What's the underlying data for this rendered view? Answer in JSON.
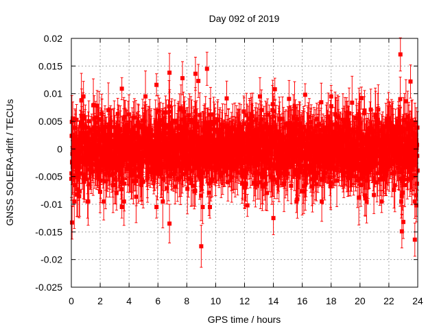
{
  "chart_data": {
    "type": "scatter",
    "title": "Day 092 of 2019",
    "xlabel": "GPS time / hours",
    "ylabel": "GNSS SOLERA-drift / TECUs",
    "xlim": [
      0,
      24
    ],
    "ylim": [
      -0.025,
      0.02
    ],
    "x_ticks": [
      0,
      2,
      4,
      6,
      8,
      10,
      12,
      14,
      16,
      18,
      20,
      22,
      24
    ],
    "x_tick_labels": [
      "0",
      "2",
      "4",
      "6",
      "8",
      "10",
      "12",
      "14",
      "16",
      "18",
      "20",
      "22",
      "24"
    ],
    "y_ticks": [
      -0.025,
      -0.02,
      -0.015,
      -0.01,
      -0.005,
      0,
      0.005,
      0.01,
      0.015,
      0.02
    ],
    "y_tick_labels": [
      "-0.025",
      "-0.02",
      "-0.015",
      "-0.01",
      "-0.005",
      "0",
      "0.005",
      "0.01",
      "0.015",
      "0.02"
    ],
    "grid": true,
    "series_color": "#ff0000",
    "series": [
      {
        "name": "SOLERA-drift",
        "marker": "square",
        "error_bars": true,
        "typical_error": 0.004,
        "bulk_spread": 0.0055,
        "sample_interval_hours": 0.012,
        "notable_points": [
          {
            "x": 0.05,
            "y": -0.0133,
            "err": 0.003
          },
          {
            "x": 0.1,
            "y": 0.0055,
            "err": 0.003
          },
          {
            "x": 3.5,
            "y": 0.0109,
            "err": 0.002
          },
          {
            "x": 3.5,
            "y": -0.0105,
            "err": 0.002
          },
          {
            "x": 5.9,
            "y": 0.0116,
            "err": 0.002
          },
          {
            "x": 5.9,
            "y": -0.0105,
            "err": 0.002
          },
          {
            "x": 6.8,
            "y": 0.0138,
            "err": 0.0035
          },
          {
            "x": 6.8,
            "y": -0.0135,
            "err": 0.0035
          },
          {
            "x": 7.7,
            "y": 0.0128,
            "err": 0.003
          },
          {
            "x": 8.6,
            "y": 0.0136,
            "err": 0.003
          },
          {
            "x": 8.8,
            "y": 0.0123,
            "err": 0.003
          },
          {
            "x": 9.0,
            "y": -0.0176,
            "err": 0.0038
          },
          {
            "x": 9.1,
            "y": -0.0105,
            "err": 0.003
          },
          {
            "x": 9.4,
            "y": 0.0145,
            "err": 0.003
          },
          {
            "x": 9.6,
            "y": -0.0105,
            "err": 0.002
          },
          {
            "x": 12.2,
            "y": -0.0102,
            "err": 0.002
          },
          {
            "x": 14.0,
            "y": -0.0125,
            "err": 0.003
          },
          {
            "x": 14.1,
            "y": 0.0108,
            "err": 0.002
          },
          {
            "x": 15.6,
            "y": -0.0095,
            "err": 0.002
          },
          {
            "x": 16.2,
            "y": 0.0098,
            "err": 0.002
          },
          {
            "x": 18.0,
            "y": 0.0095,
            "err": 0.002
          },
          {
            "x": 20.1,
            "y": 0.0092,
            "err": 0.002
          },
          {
            "x": 21.5,
            "y": -0.0095,
            "err": 0.002
          },
          {
            "x": 22.8,
            "y": 0.0171,
            "err": 0.003
          },
          {
            "x": 22.9,
            "y": -0.0149,
            "err": 0.003
          },
          {
            "x": 23.0,
            "y": -0.0132,
            "err": 0.003
          },
          {
            "x": 23.5,
            "y": 0.0122,
            "err": 0.003
          },
          {
            "x": 23.8,
            "y": -0.0164,
            "err": 0.003
          },
          {
            "x": 23.9,
            "y": -0.0102,
            "err": 0.003
          }
        ]
      }
    ]
  }
}
